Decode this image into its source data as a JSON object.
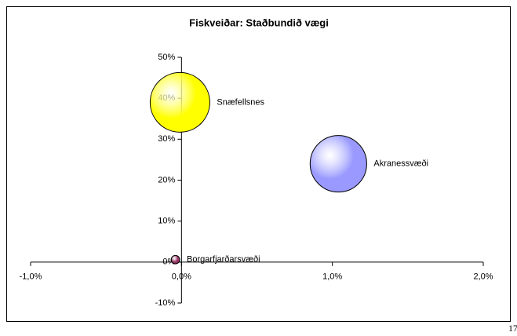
{
  "chart_data": {
    "type": "bubble",
    "title": "Fiskveiðar: Staðbundið vægi",
    "series": [
      {
        "name": "Snæfellsnes",
        "color": "#ffff00",
        "x": -0.01,
        "y": 39,
        "size": 100
      },
      {
        "name": "Akranessvæði",
        "color": "#9999ff",
        "x": 1.04,
        "y": 24,
        "size": 90
      },
      {
        "name": "Borgarfjarðarsvæði",
        "color": "#993366",
        "x": -0.04,
        "y": 0.6,
        "size": 2
      }
    ],
    "xlim": [
      -1,
      2
    ],
    "xticks": [
      {
        "value": -1,
        "label": "-1,0%"
      },
      {
        "value": 0,
        "label": "0,0%"
      },
      {
        "value": 1,
        "label": "1,0%"
      },
      {
        "value": 2,
        "label": "2,0%"
      }
    ],
    "ylim": [
      -10,
      50
    ],
    "yticks": [
      {
        "value": -10,
        "label": "-10%"
      },
      {
        "value": 0,
        "label": "0%"
      },
      {
        "value": 10,
        "label": "10%"
      },
      {
        "value": 20,
        "label": "20%"
      },
      {
        "value": 30,
        "label": "30%"
      },
      {
        "value": 40,
        "label": "40%"
      },
      {
        "value": 50,
        "label": "50%"
      }
    ],
    "page_number": "17"
  }
}
